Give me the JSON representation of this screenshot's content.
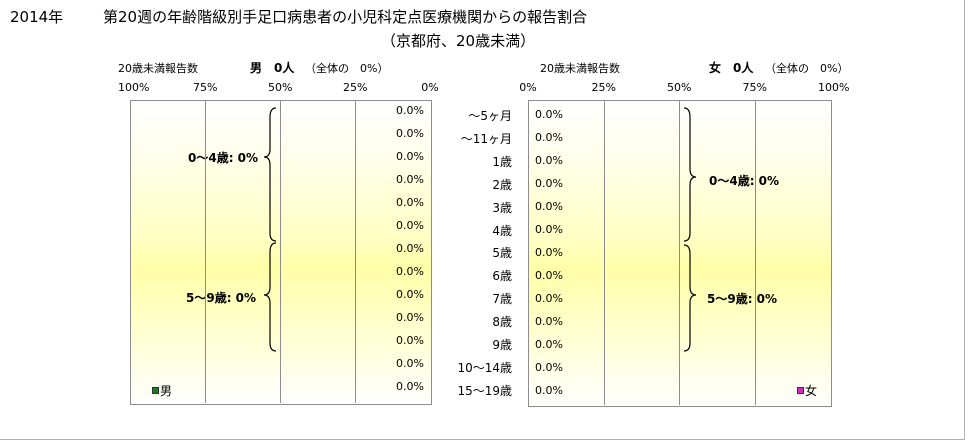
{
  "title": {
    "line1_year": "2014年",
    "line1_main": "第20週の年齢階級別手足口病患者の小児科定点医療機関からの報告割合",
    "line2": "（京都府、20歳未満）"
  },
  "male_header": {
    "label": "20歳未満報告数",
    "sex": "男",
    "count": "0人",
    "share": "（全体の　0%）"
  },
  "female_header": {
    "label": "20歳未満報告数",
    "sex": "女",
    "count": "0人",
    "share": "（全体の　0%）"
  },
  "legend": {
    "male": "男",
    "female": "女"
  },
  "colors": {
    "male": "#1f7a1f",
    "female": "#cc2fbf",
    "grid": "#8c8c8c"
  },
  "groups": {
    "g0_4": "0～4歳: 0%",
    "g5_9": "5～9歳: 0%"
  },
  "chart_data": {
    "type": "bar",
    "orientation": "horizontal-butterfly",
    "categories": [
      "～5ヶ月",
      "～11ヶ月",
      "1歳",
      "2歳",
      "3歳",
      "4歳",
      "5歳",
      "6歳",
      "7歳",
      "8歳",
      "9歳",
      "10～14歳",
      "15～19歳"
    ],
    "x_ticks_male": [
      "100%",
      "75%",
      "50%",
      "25%",
      "0%"
    ],
    "x_ticks_female": [
      "0%",
      "25%",
      "50%",
      "75%",
      "100%"
    ],
    "xlim": [
      0,
      100
    ],
    "series": [
      {
        "name": "男",
        "values": [
          0,
          0,
          0,
          0,
          0,
          0,
          0,
          0,
          0,
          0,
          0,
          0,
          0
        ],
        "labels": [
          "0.0%",
          "0.0%",
          "0.0%",
          "0.0%",
          "0.0%",
          "0.0%",
          "0.0%",
          "0.0%",
          "0.0%",
          "0.0%",
          "0.0%",
          "0.0%",
          "0.0%"
        ]
      },
      {
        "name": "女",
        "values": [
          0,
          0,
          0,
          0,
          0,
          0,
          0,
          0,
          0,
          0,
          0,
          0,
          0
        ],
        "labels": [
          "0.0%",
          "0.0%",
          "0.0%",
          "0.0%",
          "0.0%",
          "0.0%",
          "0.0%",
          "0.0%",
          "0.0%",
          "0.0%",
          "0.0%",
          "0.0%",
          "0.0%"
        ]
      }
    ],
    "grid": true
  }
}
